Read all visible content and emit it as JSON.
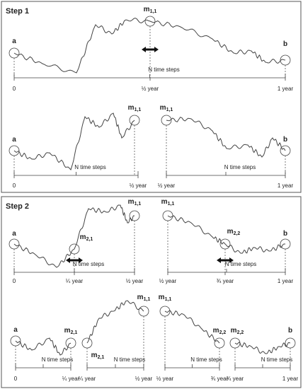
{
  "steps": [
    {
      "title": "Step 1",
      "panels": [
        {
          "labels": [
            {
              "text": "a"
            },
            {
              "text": "m",
              "sub": "1,1"
            },
            {
              "text": "b"
            }
          ],
          "brace": "N time steps",
          "ticks": [
            "0",
            "½ year",
            "1 year"
          ]
        },
        {
          "labels": [
            {
              "text": "a"
            },
            {
              "text": "m",
              "sub": "1,1"
            }
          ],
          "brace": "N time steps",
          "ticks": [
            "0",
            "½ year"
          ]
        },
        {
          "labels": [
            {
              "text": "m",
              "sub": "1,1"
            },
            {
              "text": "b"
            }
          ],
          "brace": "N time steps",
          "ticks": [
            "½ year",
            "1 year"
          ]
        }
      ]
    },
    {
      "title": "Step 2",
      "panels": [
        {
          "labels": [
            {
              "text": "a"
            },
            {
              "text": "m",
              "sub": "2,1"
            },
            {
              "text": "m",
              "sub": "1,1"
            }
          ],
          "brace": "N time steps",
          "ticks": [
            "0",
            "¼ year",
            "½ year"
          ]
        },
        {
          "labels": [
            {
              "text": "m",
              "sub": "1,1"
            },
            {
              "text": "m",
              "sub": "2,2"
            },
            {
              "text": "b"
            }
          ],
          "brace": "N time steps",
          "ticks": [
            "½ year",
            "¾ year",
            "1 year"
          ]
        },
        {
          "labels": [
            {
              "text": "a"
            },
            {
              "text": "m",
              "sub": "2,1"
            }
          ],
          "brace": "N time steps",
          "ticks": [
            "0",
            "¼ year"
          ]
        },
        {
          "labels": [
            {
              "text": "m",
              "sub": "2,1"
            },
            {
              "text": "m",
              "sub": "1,1"
            }
          ],
          "brace": "N time steps",
          "ticks": [
            "¼ year",
            "½ year"
          ]
        },
        {
          "labels": [
            {
              "text": "m",
              "sub": "1,1"
            },
            {
              "text": "m",
              "sub": "2,2"
            }
          ],
          "brace": "N time steps",
          "ticks": [
            "½ year",
            "¾ year"
          ]
        },
        {
          "labels": [
            {
              "text": "m",
              "sub": "2,2"
            },
            {
              "text": "b"
            }
          ],
          "brace": "N time steps",
          "ticks": [
            "¾ year",
            "1 year"
          ]
        }
      ]
    }
  ]
}
